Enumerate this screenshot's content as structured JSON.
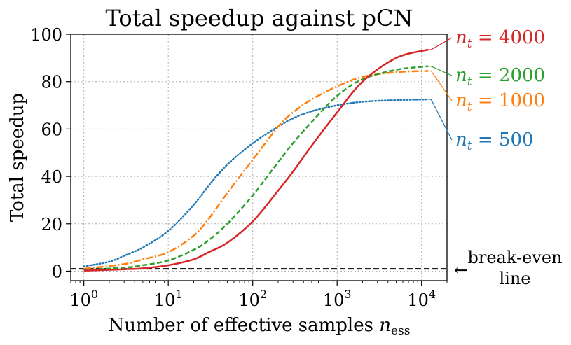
{
  "chart_data": {
    "type": "line",
    "title": "Total speedup against pCN",
    "xlabel": "Number of effective samples",
    "xlabel_symbol": "n",
    "xlabel_subscript": "ess",
    "ylabel": "Total speedup",
    "xscale": "log",
    "xlim": [
      0.7,
      20000
    ],
    "ylim": [
      -4,
      100
    ],
    "x_ticks": [
      {
        "value": 1,
        "base": "10",
        "exp": "0"
      },
      {
        "value": 10,
        "base": "10",
        "exp": "1"
      },
      {
        "value": 100,
        "base": "10",
        "exp": "2"
      },
      {
        "value": 1000,
        "base": "10",
        "exp": "3"
      },
      {
        "value": 10000,
        "base": "10",
        "exp": "4"
      }
    ],
    "y_ticks": [
      {
        "value": 0,
        "label": "0"
      },
      {
        "value": 20,
        "label": "20"
      },
      {
        "value": 40,
        "label": "40"
      },
      {
        "value": 60,
        "label": "60"
      },
      {
        "value": 80,
        "label": "80"
      },
      {
        "value": 100,
        "label": "100"
      }
    ],
    "grid": true,
    "series": [
      {
        "name": "n_t = 500",
        "label_symbol": "n",
        "label_sub": "t",
        "label_rest": " = 500",
        "color": "#1f77b4",
        "dash": "dotted",
        "x": [
          1,
          2,
          3,
          5,
          10,
          20,
          30,
          50,
          100,
          200,
          300,
          500,
          1000,
          2000,
          5000,
          12000
        ],
        "y": [
          2,
          4,
          6.5,
          10,
          17,
          28,
          36,
          45,
          54,
          61,
          64.5,
          67.5,
          70,
          71.5,
          72.2,
          72.5
        ]
      },
      {
        "name": "n_t = 1000",
        "label_symbol": "n",
        "label_sub": "t",
        "label_rest": " = 1000",
        "color": "#ff7f0e",
        "dash": "dashdot",
        "x": [
          1,
          3,
          5,
          10,
          20,
          30,
          50,
          100,
          200,
          300,
          500,
          1000,
          2000,
          5000,
          12000
        ],
        "y": [
          1,
          3,
          5,
          8,
          15,
          22,
          33,
          47,
          61,
          67,
          72.5,
          78,
          82,
          84,
          84.5
        ]
      },
      {
        "name": "n_t = 2000",
        "label_symbol": "n",
        "label_sub": "t",
        "label_rest": " = 2000",
        "color": "#2ca02c",
        "dash": "dashed",
        "x": [
          1,
          3,
          5,
          10,
          20,
          30,
          50,
          100,
          200,
          300,
          500,
          1000,
          2000,
          5000,
          12000
        ],
        "y": [
          0.5,
          1.5,
          2.5,
          4.5,
          9,
          13,
          20,
          32,
          46,
          54,
          63,
          74,
          81,
          85,
          86.5
        ]
      },
      {
        "name": "n_t = 4000",
        "label_symbol": "n",
        "label_sub": "t",
        "label_rest": " = 4000",
        "color": "#d62728",
        "dash": "solid",
        "x": [
          1,
          3,
          5,
          10,
          20,
          30,
          50,
          100,
          200,
          300,
          500,
          1000,
          2000,
          5000,
          12000
        ],
        "y": [
          0.2,
          0.8,
          1.2,
          2.5,
          5,
          8,
          12,
          21,
          34,
          42,
          53,
          67,
          80,
          90,
          93.5
        ]
      }
    ],
    "reference_line": {
      "y": 1,
      "color": "#000000",
      "dash": "dashed",
      "label_line1": "break-even",
      "label_line2": "line",
      "arrow_glyph": "←"
    }
  }
}
